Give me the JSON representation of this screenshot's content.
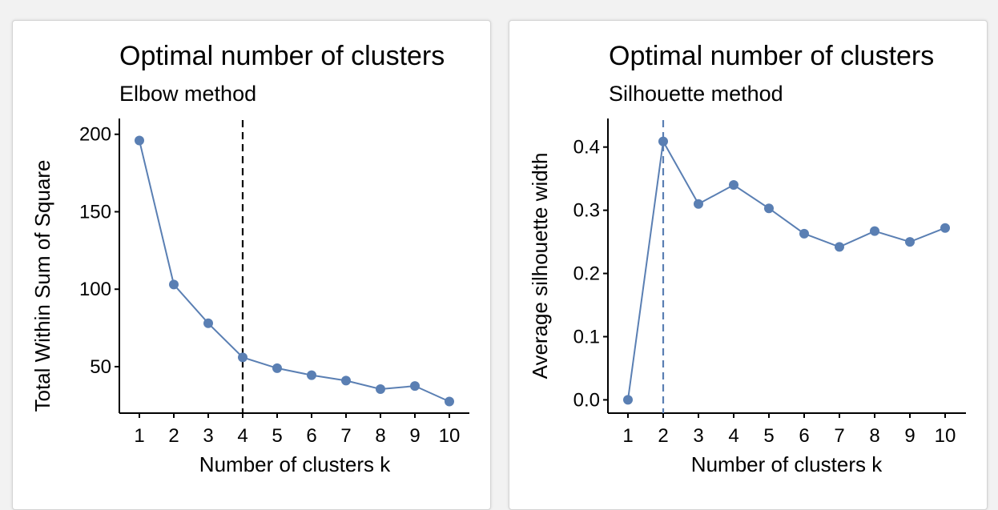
{
  "colors": {
    "series": "#5a7fb3",
    "ref_left": "#000000",
    "ref_right": "#5a7fb3"
  },
  "chart_data": [
    {
      "type": "line",
      "title": "Optimal number of clusters",
      "subtitle": "Elbow method",
      "xlabel": "Number of clusters k",
      "ylabel": "Total Within Sum of Square",
      "categories": [
        "1",
        "2",
        "3",
        "4",
        "5",
        "6",
        "7",
        "8",
        "9",
        "10"
      ],
      "values": [
        196,
        103,
        78,
        56,
        49,
        44.5,
        41,
        35.5,
        37.5,
        27.5
      ],
      "yticks": [
        50,
        100,
        150,
        200
      ],
      "ylim": [
        20,
        204
      ],
      "reference_line_x": 4,
      "grid": false,
      "legend": "none"
    },
    {
      "type": "line",
      "title": "Optimal number of clusters",
      "subtitle": "Silhouette method",
      "xlabel": "Number of clusters k",
      "ylabel": "Average silhouette width",
      "categories": [
        "1",
        "2",
        "3",
        "4",
        "5",
        "6",
        "7",
        "8",
        "9",
        "10"
      ],
      "values": [
        0.0,
        0.409,
        0.31,
        0.34,
        0.303,
        0.263,
        0.242,
        0.267,
        0.25,
        0.272
      ],
      "yticks": [
        0.0,
        0.1,
        0.2,
        0.3,
        0.4
      ],
      "ylim": [
        -0.021,
        0.43
      ],
      "reference_line_x": 2,
      "grid": false,
      "legend": "none"
    }
  ]
}
